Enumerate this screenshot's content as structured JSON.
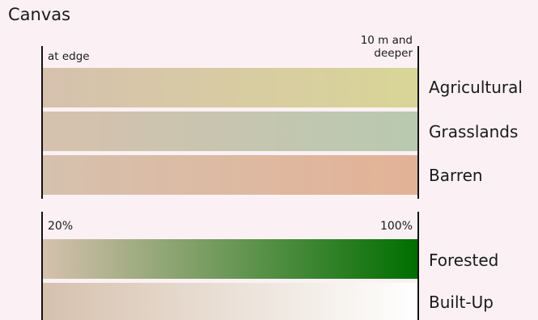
{
  "canvas_label": "Canvas",
  "depth_scale": {
    "start_label": "at edge",
    "end_label_line1": "10 m and",
    "end_label_line2": "deeper"
  },
  "depth_categories": [
    {
      "name": "Agricultural",
      "color_start": "#d6c1ae",
      "color_end": "#d9d597"
    },
    {
      "name": "Grasslands",
      "color_start": "#d6c1ae",
      "color_end": "#b8c9b0"
    },
    {
      "name": "Barren",
      "color_start": "#d6c1ae",
      "color_end": "#e3b296"
    }
  ],
  "cover_scale": {
    "start_label": "20%",
    "end_label": "100%"
  },
  "cover_categories": [
    {
      "name": "Forested",
      "color_start": "#d6c1ae",
      "color_end": "#006e00"
    },
    {
      "name": "Built-Up",
      "color_start": "#d6c1ae",
      "color_end": "#ffffff"
    }
  ]
}
